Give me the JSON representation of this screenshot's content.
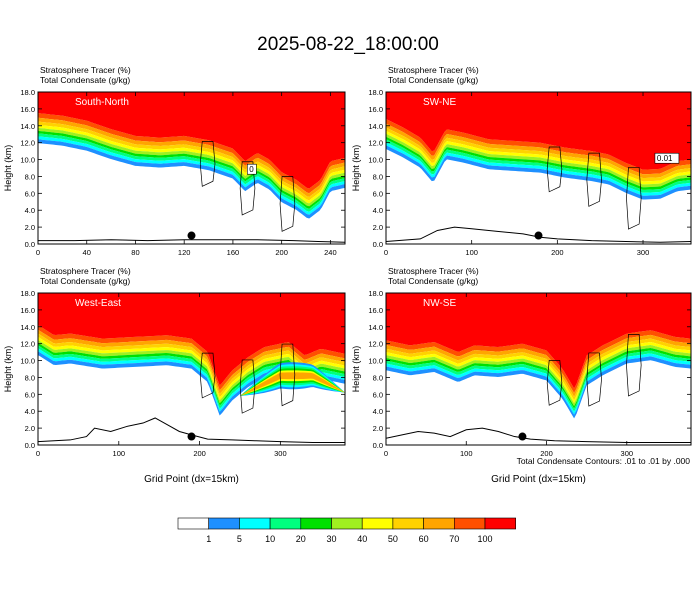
{
  "page": {
    "title": "2025-08-22_18:00:00",
    "footnote": "Total Condensate Contours: .01 to .01 by .000"
  },
  "chart_data": [
    {
      "type": "heatmap",
      "cross_section": "South-North",
      "variable_labels": [
        "Stratosphere Tracer   (%)",
        "Total Condensate   (g/kg)"
      ],
      "ylabel": "Height (km)",
      "xlabel": "",
      "ylim": [
        0,
        18
      ],
      "yticks": [
        "0.0",
        "2.0",
        "4.0",
        "6.0",
        "8.0",
        "10.0",
        "12.0",
        "14.0",
        "16.0",
        "18.0"
      ],
      "xlim": [
        0,
        252
      ],
      "xticks": [
        0,
        40,
        80,
        120,
        160,
        200,
        240
      ],
      "contour_labels": [
        "0"
      ],
      "strat_base_profile": [
        [
          0,
          15.5
        ],
        [
          20,
          15.2
        ],
        [
          40,
          14.6
        ],
        [
          60,
          13.6
        ],
        [
          80,
          12.8
        ],
        [
          100,
          12.6
        ],
        [
          120,
          12.8
        ],
        [
          140,
          12.3
        ],
        [
          160,
          11.3
        ],
        [
          170,
          9.8
        ],
        [
          180,
          10.8
        ],
        [
          190,
          10.0
        ],
        [
          200,
          8.5
        ],
        [
          212,
          7.6
        ],
        [
          222,
          6.5
        ],
        [
          232,
          7.6
        ],
        [
          240,
          9.8
        ],
        [
          252,
          10.2
        ]
      ],
      "terrain_profile": [
        [
          0,
          0.4
        ],
        [
          30,
          0.4
        ],
        [
          60,
          0.5
        ],
        [
          90,
          0.4
        ],
        [
          120,
          0.5
        ],
        [
          150,
          0.5
        ],
        [
          180,
          0.5
        ],
        [
          210,
          0.4
        ],
        [
          230,
          0.3
        ],
        [
          252,
          0.2
        ]
      ],
      "marker_x": 126
    },
    {
      "type": "heatmap",
      "cross_section": "SW-NE",
      "variable_labels": [
        "Stratosphere Tracer   (%)",
        "Total Condensate   (g/kg)"
      ],
      "ylabel": "Height (km)",
      "xlabel": "",
      "ylim": [
        0,
        18
      ],
      "yticks": [
        "0.0",
        "2.0",
        "4.0",
        "6.0",
        "8.0",
        "10.0",
        "12.0",
        "14.0",
        "16.0",
        "18.0"
      ],
      "xlim": [
        0,
        356
      ],
      "xticks": [
        0,
        100,
        200,
        300
      ],
      "contour_labels": [
        "0.01"
      ],
      "strat_base_profile": [
        [
          0,
          14.8
        ],
        [
          20,
          13.8
        ],
        [
          40,
          12.6
        ],
        [
          55,
          10.8
        ],
        [
          70,
          13.6
        ],
        [
          90,
          13.2
        ],
        [
          120,
          12.4
        ],
        [
          150,
          12.2
        ],
        [
          180,
          12.0
        ],
        [
          210,
          11.4
        ],
        [
          240,
          11.0
        ],
        [
          260,
          10.6
        ],
        [
          280,
          9.6
        ],
        [
          300,
          8.8
        ],
        [
          320,
          8.9
        ],
        [
          340,
          9.8
        ],
        [
          356,
          10.0
        ]
      ],
      "terrain_profile": [
        [
          0,
          0.3
        ],
        [
          40,
          0.6
        ],
        [
          60,
          1.6
        ],
        [
          80,
          2.0
        ],
        [
          100,
          1.8
        ],
        [
          130,
          1.5
        ],
        [
          160,
          1.2
        ],
        [
          180,
          0.8
        ],
        [
          200,
          0.6
        ],
        [
          240,
          0.4
        ],
        [
          280,
          0.3
        ],
        [
          320,
          0.2
        ],
        [
          356,
          0.3
        ]
      ],
      "marker_x": 178
    },
    {
      "type": "heatmap",
      "cross_section": "West-East",
      "variable_labels": [
        "Stratosphere Tracer   (%)",
        "Total Condensate   (g/kg)"
      ],
      "ylabel": "Height (km)",
      "xlabel": "Grid Point (dx=15km)",
      "ylim": [
        0,
        18
      ],
      "yticks": [
        "0.0",
        "2.0",
        "4.0",
        "6.0",
        "8.0",
        "10.0",
        "12.0",
        "14.0",
        "16.0",
        "18.0"
      ],
      "xlim": [
        0,
        380
      ],
      "xticks": [
        0,
        100,
        200,
        300
      ],
      "contour_labels": [],
      "strat_base_profile": [
        [
          0,
          14.2
        ],
        [
          20,
          13.0
        ],
        [
          40,
          13.2
        ],
        [
          80,
          12.6
        ],
        [
          120,
          12.8
        ],
        [
          160,
          13.0
        ],
        [
          190,
          12.6
        ],
        [
          210,
          11.0
        ],
        [
          225,
          7.0
        ],
        [
          240,
          8.8
        ],
        [
          260,
          10.4
        ],
        [
          280,
          11.6
        ],
        [
          310,
          12.2
        ],
        [
          330,
          10.6
        ],
        [
          350,
          11.4
        ],
        [
          380,
          10.8
        ]
      ],
      "secondary_plume": [
        [
          250,
          5.8
        ],
        [
          300,
          8.2
        ],
        [
          340,
          8.2
        ],
        [
          380,
          6.2
        ]
      ],
      "terrain_profile": [
        [
          0,
          0.4
        ],
        [
          40,
          0.6
        ],
        [
          60,
          1.0
        ],
        [
          70,
          2.0
        ],
        [
          90,
          1.6
        ],
        [
          110,
          2.2
        ],
        [
          130,
          2.6
        ],
        [
          145,
          3.2
        ],
        [
          160,
          2.4
        ],
        [
          175,
          1.6
        ],
        [
          190,
          1.2
        ],
        [
          210,
          0.7
        ],
        [
          240,
          0.6
        ],
        [
          270,
          0.5
        ],
        [
          300,
          0.4
        ],
        [
          340,
          0.3
        ],
        [
          380,
          0.3
        ]
      ],
      "marker_x": 190
    },
    {
      "type": "heatmap",
      "cross_section": "NW-SE",
      "variable_labels": [
        "Stratosphere Tracer   (%)",
        "Total Condensate   (g/kg)"
      ],
      "ylabel": "Height (km)",
      "xlabel": "Grid Point (dx=15km)",
      "ylim": [
        0,
        18
      ],
      "yticks": [
        "0.0",
        "2.0",
        "4.0",
        "6.0",
        "8.0",
        "10.0",
        "12.0",
        "14.0",
        "16.0",
        "18.0"
      ],
      "xlim": [
        0,
        380
      ],
      "xticks": [
        0,
        100,
        200,
        300
      ],
      "contour_labels": [],
      "strat_base_profile": [
        [
          0,
          12.4
        ],
        [
          30,
          11.8
        ],
        [
          60,
          12.2
        ],
        [
          90,
          11.0
        ],
        [
          110,
          11.8
        ],
        [
          140,
          11.6
        ],
        [
          170,
          12.0
        ],
        [
          200,
          11.2
        ],
        [
          220,
          9.0
        ],
        [
          235,
          6.6
        ],
        [
          250,
          10.6
        ],
        [
          270,
          11.8
        ],
        [
          300,
          13.2
        ],
        [
          330,
          13.6
        ],
        [
          360,
          12.8
        ],
        [
          380,
          12.6
        ]
      ],
      "terrain_profile": [
        [
          0,
          0.8
        ],
        [
          20,
          1.2
        ],
        [
          40,
          1.6
        ],
        [
          60,
          1.4
        ],
        [
          80,
          1.0
        ],
        [
          100,
          1.8
        ],
        [
          120,
          2.0
        ],
        [
          140,
          1.6
        ],
        [
          160,
          1.0
        ],
        [
          180,
          0.7
        ],
        [
          210,
          0.5
        ],
        [
          250,
          0.4
        ],
        [
          300,
          0.3
        ],
        [
          380,
          0.3
        ]
      ],
      "marker_x": 170
    }
  ],
  "colorbar": {
    "levels": [
      "1",
      "5",
      "10",
      "20",
      "30",
      "40",
      "50",
      "60",
      "70",
      "100"
    ],
    "colors": [
      "#ffffff",
      "#1e90ff",
      "#00ffff",
      "#00ff7f",
      "#00e000",
      "#a0f020",
      "#ffff00",
      "#ffd200",
      "#ffa500",
      "#ff5000",
      "#ff0000"
    ]
  }
}
